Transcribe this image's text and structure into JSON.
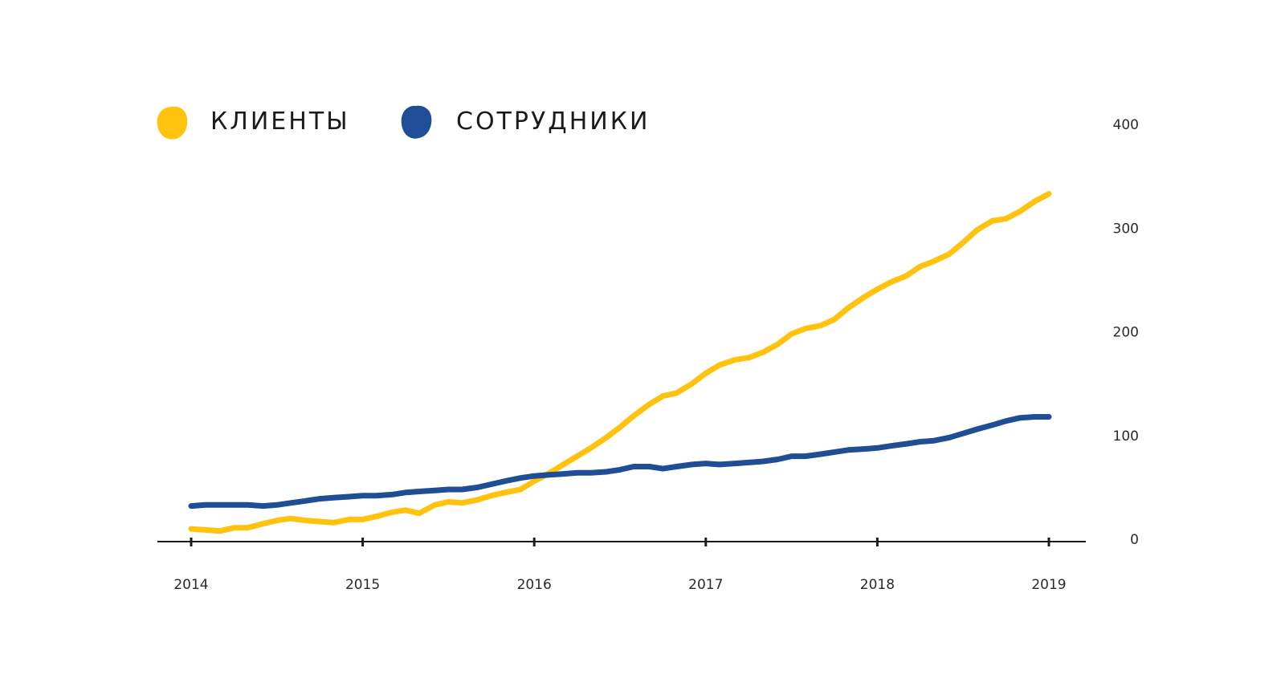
{
  "chart_data": {
    "type": "line",
    "title": "",
    "xlabel": "",
    "ylabel": "",
    "x_ticks": [
      "2014",
      "2015",
      "2016",
      "2017",
      "2018",
      "2019"
    ],
    "y_ticks": [
      "0",
      "100",
      "200",
      "300",
      "400"
    ],
    "xlim": [
      2014,
      2019
    ],
    "ylim": [
      0,
      400
    ],
    "y_axis_position": "right",
    "grid": false,
    "legend_position": "top-left",
    "series": [
      {
        "name": "КЛИЕНТЫ",
        "color": "#FFC20E",
        "x": [
          2014.0,
          2014.08,
          2014.17,
          2014.25,
          2014.33,
          2014.42,
          2014.5,
          2014.58,
          2014.67,
          2014.75,
          2014.83,
          2014.92,
          2015.0,
          2015.08,
          2015.17,
          2015.25,
          2015.33,
          2015.42,
          2015.5,
          2015.58,
          2015.67,
          2015.75,
          2015.83,
          2015.92,
          2016.0,
          2016.08,
          2016.17,
          2016.25,
          2016.33,
          2016.42,
          2016.5,
          2016.58,
          2016.67,
          2016.75,
          2016.83,
          2016.92,
          2017.0,
          2017.08,
          2017.17,
          2017.25,
          2017.33,
          2017.42,
          2017.5,
          2017.58,
          2017.67,
          2017.75,
          2017.83,
          2017.92,
          2018.0,
          2018.08,
          2018.17,
          2018.25,
          2018.33,
          2018.42,
          2018.5,
          2018.58,
          2018.67,
          2018.75,
          2018.83,
          2018.92,
          2019.0
        ],
        "values": [
          10,
          9,
          8,
          11,
          11,
          15,
          18,
          20,
          18,
          17,
          16,
          19,
          19,
          22,
          26,
          28,
          25,
          33,
          36,
          35,
          38,
          42,
          45,
          48,
          56,
          63,
          72,
          80,
          88,
          98,
          108,
          119,
          130,
          138,
          141,
          150,
          160,
          168,
          173,
          175,
          180,
          188,
          198,
          203,
          206,
          212,
          223,
          233,
          241,
          248,
          254,
          263,
          268,
          275,
          286,
          298,
          307,
          309,
          316,
          326,
          333
        ]
      },
      {
        "name": "СОТРУДНИКИ",
        "color": "#1F4E96",
        "x": [
          2014.0,
          2014.08,
          2014.17,
          2014.25,
          2014.33,
          2014.42,
          2014.5,
          2014.58,
          2014.67,
          2014.75,
          2014.83,
          2014.92,
          2015.0,
          2015.08,
          2015.17,
          2015.25,
          2015.33,
          2015.42,
          2015.5,
          2015.58,
          2015.67,
          2015.75,
          2015.83,
          2015.92,
          2016.0,
          2016.08,
          2016.17,
          2016.25,
          2016.33,
          2016.42,
          2016.5,
          2016.58,
          2016.67,
          2016.75,
          2016.83,
          2016.92,
          2017.0,
          2017.08,
          2017.17,
          2017.25,
          2017.33,
          2017.42,
          2017.5,
          2017.58,
          2017.67,
          2017.75,
          2017.83,
          2017.92,
          2018.0,
          2018.08,
          2018.17,
          2018.25,
          2018.33,
          2018.42,
          2018.5,
          2018.58,
          2018.67,
          2018.75,
          2018.83,
          2018.92,
          2019.0
        ],
        "values": [
          32,
          33,
          33,
          33,
          33,
          32,
          33,
          35,
          37,
          39,
          40,
          41,
          42,
          42,
          43,
          45,
          46,
          47,
          48,
          48,
          50,
          53,
          56,
          59,
          61,
          62,
          63,
          64,
          64,
          65,
          67,
          70,
          70,
          68,
          70,
          72,
          73,
          72,
          73,
          74,
          75,
          77,
          80,
          80,
          82,
          84,
          86,
          87,
          88,
          90,
          92,
          94,
          95,
          98,
          102,
          106,
          110,
          114,
          117,
          118,
          118
        ]
      }
    ]
  }
}
